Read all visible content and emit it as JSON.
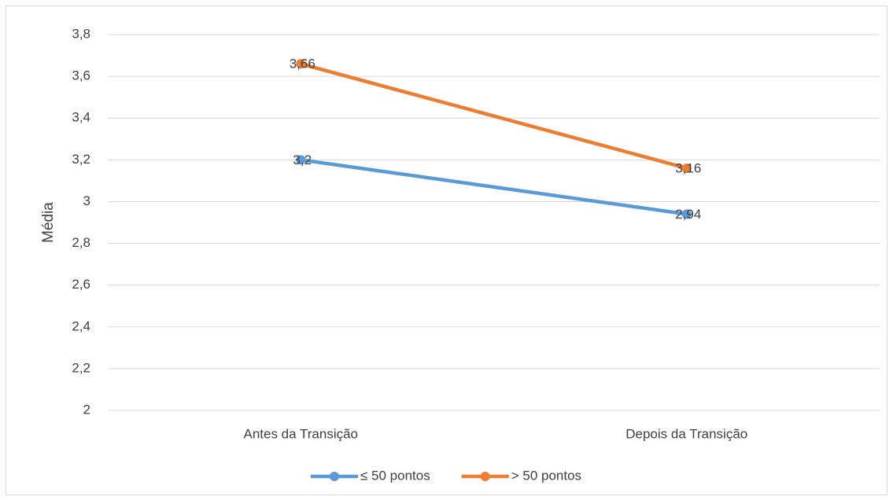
{
  "chart_data": {
    "type": "line",
    "ylabel": "Média",
    "categories": [
      "Antes da Transição",
      "Depois da Transição"
    ],
    "series": [
      {
        "name": "≤ 50 pontos",
        "color": "#5b9bd5",
        "values": [
          3.2,
          2.94
        ],
        "value_labels": [
          "3,2",
          "2,94"
        ]
      },
      {
        "name": "> 50 pontos",
        "color": "#ed7d31",
        "values": [
          3.66,
          3.16
        ],
        "value_labels": [
          "3,66",
          "3,16"
        ]
      }
    ],
    "ylim": [
      2,
      3.8
    ],
    "yticks": [
      2,
      {
        "value": 2.2,
        "label": "2,2"
      },
      {
        "value": 2.4,
        "label": "2,4"
      },
      {
        "value": 2.6,
        "label": "2,6"
      },
      {
        "value": 2.8,
        "label": "2,8"
      },
      3,
      {
        "value": 3.2,
        "label": "3,2"
      },
      {
        "value": 3.4,
        "label": "3,4"
      },
      {
        "value": 3.6,
        "label": "3,6"
      },
      {
        "value": 3.8,
        "label": "3,8"
      }
    ],
    "grid": true,
    "legend": "bottom"
  }
}
